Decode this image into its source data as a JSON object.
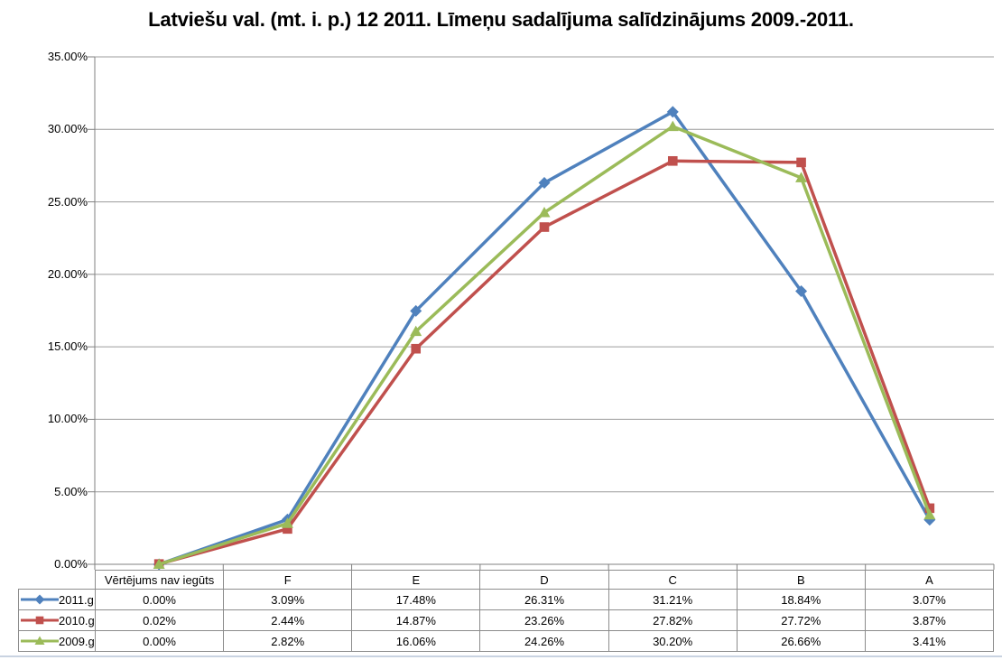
{
  "page": {
    "bottom_strip_color": "#C9D3E1",
    "background_color": "#FFFFFF"
  },
  "chart_data": {
    "type": "line",
    "title": "Latviešu val. (mt. i. p.) 12 2011. Līmeņu sadalījuma salīdzinājums 2009.-2011.",
    "categories": [
      "Vērtējums nav iegūts",
      "F",
      "E",
      "D",
      "C",
      "B",
      "A"
    ],
    "series": [
      {
        "name": "2011.g.",
        "color": "#4F81BD",
        "marker": "diamond",
        "values": [
          0.0,
          3.09,
          17.48,
          26.31,
          31.21,
          18.84,
          3.07
        ]
      },
      {
        "name": "2010.g.",
        "color": "#C0504D",
        "marker": "square",
        "values": [
          0.02,
          2.44,
          14.87,
          23.26,
          27.82,
          27.72,
          3.87
        ]
      },
      {
        "name": "2009.g.",
        "color": "#9BBB59",
        "marker": "triangle",
        "values": [
          0.0,
          2.82,
          16.06,
          24.26,
          30.2,
          26.66,
          3.41
        ]
      }
    ],
    "xlabel": "",
    "ylabel": "",
    "ylim": [
      0,
      35
    ],
    "y_tick_step": 5,
    "y_tick_labels": [
      "0.00%",
      "5.00%",
      "10.00%",
      "15.00%",
      "20.00%",
      "25.00%",
      "30.00%",
      "35.00%"
    ],
    "value_format": "percent_2dp",
    "grid": "horizontal",
    "legend_position": "data-table-left",
    "gridline_color": "#9C9C9C",
    "axis_color": "#808080",
    "table_border_color": "#8C8C8C"
  }
}
